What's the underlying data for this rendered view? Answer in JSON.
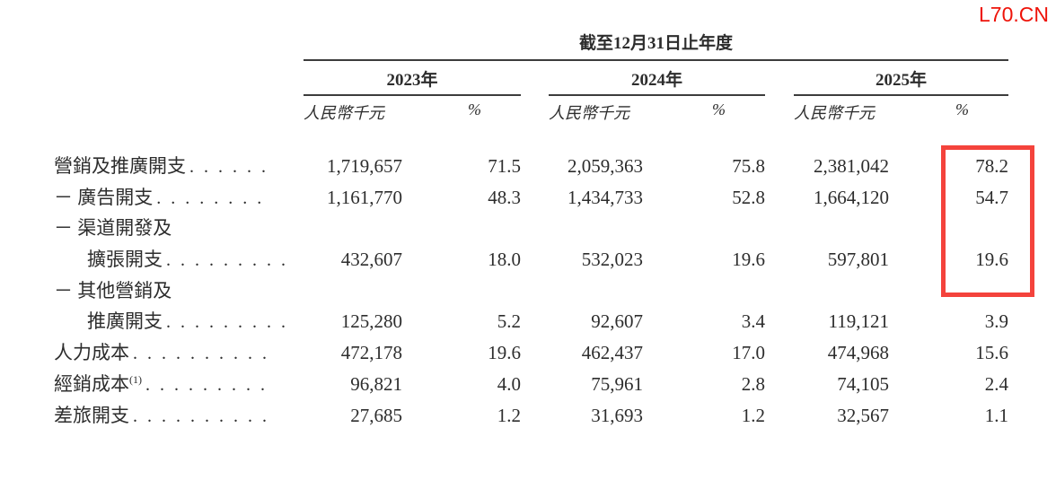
{
  "watermark": "L70.CN",
  "colors": {
    "watermark_red": "#ee1309",
    "highlight_box_red": "#f4433c",
    "text": "#2d2d2d",
    "rule": "#3c3c3c"
  },
  "table": {
    "period_header": "截至12月31日止年度",
    "year_groups": [
      {
        "year": "2023年",
        "unit_label": "人民幣千元",
        "pct_label": "%"
      },
      {
        "year": "2024年",
        "unit_label": "人民幣千元",
        "pct_label": "%"
      },
      {
        "year": "2025年",
        "unit_label": "人民幣千元",
        "pct_label": "%"
      }
    ],
    "rows": [
      {
        "label": "營銷及推廣開支",
        "dots": ". . . . . .",
        "values": [
          "1,719,657",
          "71.5",
          "2,059,363",
          "75.8",
          "2,381,042",
          "78.2"
        ]
      },
      {
        "label": "－ 廣告開支",
        "dots": ". . . . . . . .",
        "values": [
          "1,161,770",
          "48.3",
          "1,434,733",
          "52.8",
          "1,664,120",
          "54.7"
        ]
      },
      {
        "label": "－ 渠道開發及",
        "dots": "",
        "values": []
      },
      {
        "label": "擴張開支",
        "indent": true,
        "dots": ". . . . . . . . .",
        "values": [
          "432,607",
          "18.0",
          "532,023",
          "19.6",
          "597,801",
          "19.6"
        ]
      },
      {
        "label": "－ 其他營銷及",
        "dots": "",
        "values": []
      },
      {
        "label": "推廣開支",
        "indent": true,
        "dots": ". . . . . . . . .",
        "values": [
          "125,280",
          "5.2",
          "92,607",
          "3.4",
          "119,121",
          "3.9"
        ]
      },
      {
        "label": "人力成本",
        "dots": ". . . . . . . . . .",
        "values": [
          "472,178",
          "19.6",
          "462,437",
          "17.0",
          "474,968",
          "15.6"
        ]
      },
      {
        "label": "經銷成本",
        "sup": "(1)",
        "dots": ". . . . . . . . .",
        "values": [
          "96,821",
          "4.0",
          "75,961",
          "2.8",
          "74,105",
          "2.4"
        ]
      },
      {
        "label": "差旅開支",
        "dots": ". . . . . . . . . .",
        "values": [
          "27,685",
          "1.2",
          "31,693",
          "1.2",
          "32,567",
          "1.1"
        ]
      }
    ]
  }
}
